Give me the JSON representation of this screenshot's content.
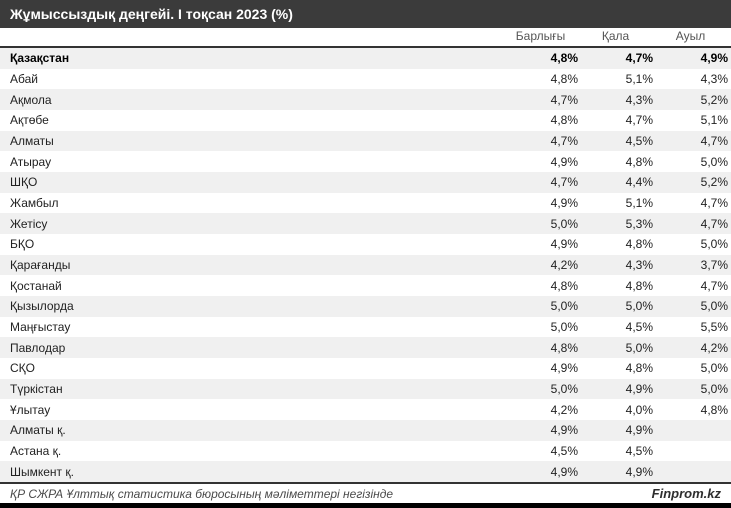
{
  "title": "Жұмыссыздық деңгейі. I тоқсан 2023 (%)",
  "chart_data": {
    "type": "table",
    "title": "Жұмыссыздық деңгейі. I тоқсан 2023 (%)",
    "columns": [
      "Барлығы",
      "Қала",
      "Ауыл"
    ],
    "rows": [
      {
        "region": "Қазақстан",
        "values": [
          "4,8%",
          "4,7%",
          "4,9%"
        ],
        "bold": true
      },
      {
        "region": "Абай",
        "values": [
          "4,8%",
          "5,1%",
          "4,3%"
        ],
        "bold": false
      },
      {
        "region": "Ақмола",
        "values": [
          "4,7%",
          "4,3%",
          "5,2%"
        ],
        "bold": false
      },
      {
        "region": "Ақтөбе",
        "values": [
          "4,8%",
          "4,7%",
          "5,1%"
        ],
        "bold": false
      },
      {
        "region": "Алматы",
        "values": [
          "4,7%",
          "4,5%",
          "4,7%"
        ],
        "bold": false
      },
      {
        "region": "Атырау",
        "values": [
          "4,9%",
          "4,8%",
          "5,0%"
        ],
        "bold": false
      },
      {
        "region": "ШҚО",
        "values": [
          "4,7%",
          "4,4%",
          "5,2%"
        ],
        "bold": false
      },
      {
        "region": "Жамбыл",
        "values": [
          "4,9%",
          "5,1%",
          "4,7%"
        ],
        "bold": false
      },
      {
        "region": "Жетісу",
        "values": [
          "5,0%",
          "5,3%",
          "4,7%"
        ],
        "bold": false
      },
      {
        "region": "БҚО",
        "values": [
          "4,9%",
          "4,8%",
          "5,0%"
        ],
        "bold": false
      },
      {
        "region": "Қарағанды",
        "values": [
          "4,2%",
          "4,3%",
          "3,7%"
        ],
        "bold": false
      },
      {
        "region": "Қостанай",
        "values": [
          "4,8%",
          "4,8%",
          "4,7%"
        ],
        "bold": false
      },
      {
        "region": "Қызылорда",
        "values": [
          "5,0%",
          "5,0%",
          "5,0%"
        ],
        "bold": false
      },
      {
        "region": "Маңғыстау",
        "values": [
          "5,0%",
          "4,5%",
          "5,5%"
        ],
        "bold": false
      },
      {
        "region": "Павлодар",
        "values": [
          "4,8%",
          "5,0%",
          "4,2%"
        ],
        "bold": false
      },
      {
        "region": "СҚО",
        "values": [
          "4,9%",
          "4,8%",
          "5,0%"
        ],
        "bold": false
      },
      {
        "region": "Түркістан",
        "values": [
          "5,0%",
          "4,9%",
          "5,0%"
        ],
        "bold": false
      },
      {
        "region": "Ұлытау",
        "values": [
          "4,2%",
          "4,0%",
          "4,8%"
        ],
        "bold": false
      },
      {
        "region": "Алматы қ.",
        "values": [
          "4,9%",
          "4,9%",
          ""
        ],
        "bold": false
      },
      {
        "region": "Астана қ.",
        "values": [
          "4,5%",
          "4,5%",
          ""
        ],
        "bold": false
      },
      {
        "region": "Шымкент қ.",
        "values": [
          "4,9%",
          "4,9%",
          ""
        ],
        "bold": false
      }
    ]
  },
  "footer": {
    "source": "ҚР СЖРА Ұлттық статистика бюросының мәліметтері негізінде",
    "brand": "Finprom.kz"
  },
  "colors": {
    "title_bar_bg": "#3b3b3b",
    "stripe_bg": "#f0f0f0",
    "rule": "#333333",
    "header_text": "#555555",
    "bottom_bar": "#000000"
  }
}
